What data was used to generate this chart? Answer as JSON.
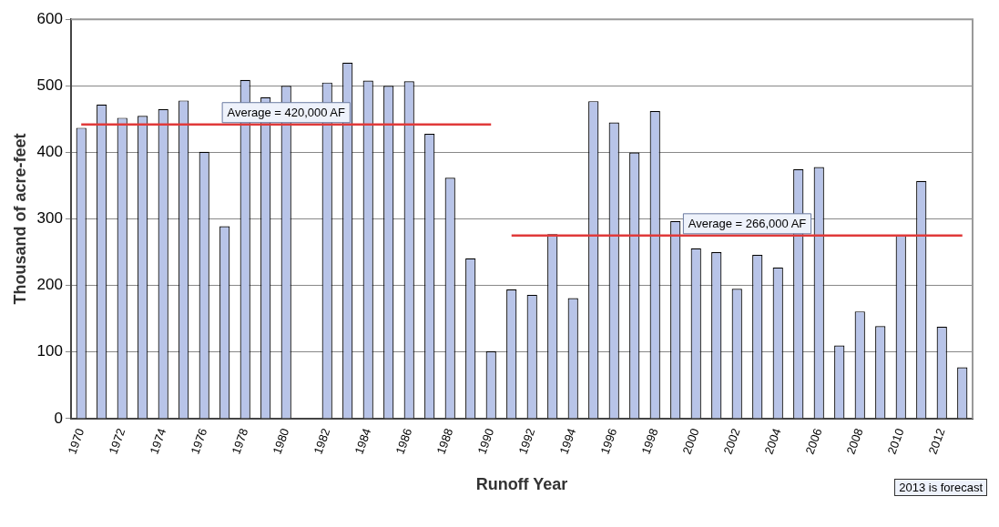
{
  "chart_data": {
    "type": "bar",
    "xlabel": "Runoff Year",
    "ylabel": "Thousand of acre-feet",
    "categories": [
      "1970",
      null,
      "1972",
      null,
      "1974",
      null,
      "1976",
      null,
      "1978",
      null,
      "1980",
      null,
      "1982",
      null,
      "1984",
      null,
      "1986",
      null,
      "1988",
      null,
      "1990",
      null,
      "1992",
      null,
      "1994",
      null,
      "1996",
      null,
      "1998",
      null,
      "2000",
      null,
      "2002",
      null,
      "2004",
      null,
      "2006",
      null,
      "2008",
      null,
      "2010",
      null,
      "2012",
      null
    ],
    "series": [
      {
        "color": "#b8c4e8",
        "values": [
          437,
          472,
          452,
          455,
          465,
          478,
          401,
          289,
          509,
          483,
          500,
          null,
          505,
          535,
          508,
          500,
          507,
          428,
          362,
          241,
          101,
          194,
          186,
          277,
          181,
          477,
          445,
          400,
          462,
          297,
          256,
          250,
          195,
          246,
          227,
          375,
          378,
          110,
          161,
          139,
          276,
          357,
          138,
          77
        ]
      },
      {
        "type": "line",
        "name": "Average = 420,000 AF",
        "color": "#e03a3a",
        "values": [
          442,
          442,
          442,
          442,
          442,
          442,
          442,
          442,
          442,
          442,
          442,
          442,
          442,
          442,
          442,
          442,
          442,
          442,
          442,
          442,
          442,
          null,
          null,
          null,
          null,
          null,
          null,
          null,
          null,
          null,
          null,
          null,
          null,
          null,
          null,
          null,
          null,
          null,
          null,
          null,
          null,
          null,
          null,
          null
        ]
      },
      {
        "type": "line",
        "name": "Average = 266,000 AF",
        "color": "#e03a3a",
        "values": [
          null,
          null,
          null,
          null,
          null,
          null,
          null,
          null,
          null,
          null,
          null,
          null,
          null,
          null,
          null,
          null,
          null,
          null,
          null,
          null,
          null,
          275,
          275,
          275,
          275,
          275,
          275,
          275,
          275,
          275,
          275,
          275,
          275,
          275,
          275,
          275,
          275,
          275,
          275,
          275,
          275,
          275,
          275,
          275
        ]
      }
    ],
    "ylim": [
      0,
      600
    ],
    "yticks": [
      0,
      100,
      200,
      300,
      400,
      500,
      600
    ],
    "grid": "y",
    "legend": false,
    "marker": "none",
    "annotations": [
      "2013 is forecast"
    ]
  }
}
